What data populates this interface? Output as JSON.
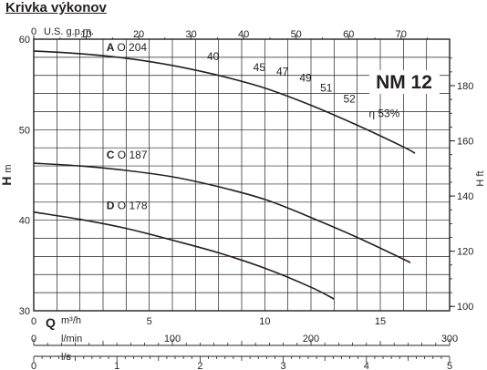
{
  "page_title": "Krivka výkonov",
  "chart_data": {
    "type": "line",
    "title": "Krivka výkonov",
    "model": "NM 12",
    "colors": {
      "line": "#231f20",
      "grid": "#231f20",
      "background": "#ffffff"
    },
    "grid": true,
    "ylabel": "H m",
    "ylabel_right": "H ft",
    "ylim": [
      30,
      60
    ],
    "y_ticks": [
      30,
      40,
      50,
      60
    ],
    "y_ticks_right": [
      100,
      120,
      140,
      160,
      180
    ],
    "xlabel_q": "Q",
    "xlabel_m3h": "m³/h",
    "xlim": [
      0,
      18
    ],
    "x_ticks_m3h": [
      0,
      5,
      10,
      15
    ],
    "x_top_label": "U.S. g.p.m.",
    "x_ticks_gpm": [
      0,
      10,
      20,
      30,
      40,
      50,
      60,
      70
    ],
    "x_label_lmin": "l/min",
    "x_ticks_lmin": [
      0,
      100,
      200,
      300
    ],
    "x_label_ls": "l/s",
    "x_ticks_ls": [
      0,
      1,
      2,
      3,
      4,
      5
    ],
    "series": [
      {
        "name": "A",
        "diameter": "O 204",
        "x": [
          0,
          2,
          4,
          6,
          8,
          10,
          12,
          14,
          16,
          16.5
        ],
        "y": [
          58.7,
          58.4,
          57.9,
          57.1,
          56.0,
          54.6,
          52.7,
          50.5,
          48.1,
          47.4
        ]
      },
      {
        "name": "C",
        "diameter": "O 187",
        "x": [
          0,
          2,
          4,
          6,
          8,
          10,
          12,
          14,
          16,
          16.3
        ],
        "y": [
          46.3,
          46.0,
          45.5,
          44.8,
          43.7,
          42.3,
          40.3,
          38.1,
          35.7,
          35.3
        ]
      },
      {
        "name": "D",
        "diameter": "O 178",
        "x": [
          0,
          2,
          4,
          6,
          8,
          10,
          12,
          13
        ],
        "y": [
          40.9,
          40.1,
          39.1,
          37.8,
          36.4,
          34.7,
          32.6,
          31.3
        ]
      }
    ],
    "efficiency_labels": [
      {
        "text": "40",
        "x": 7.5,
        "y": 57.7
      },
      {
        "text": "45",
        "x": 9.5,
        "y": 56.5
      },
      {
        "text": "47",
        "x": 10.5,
        "y": 56.0
      },
      {
        "text": "49",
        "x": 11.5,
        "y": 55.3
      },
      {
        "text": "51",
        "x": 12.4,
        "y": 54.2
      },
      {
        "text": "52",
        "x": 13.4,
        "y": 53.0
      },
      {
        "text": "η 53%",
        "x": 14.5,
        "y": 51.4
      }
    ]
  }
}
